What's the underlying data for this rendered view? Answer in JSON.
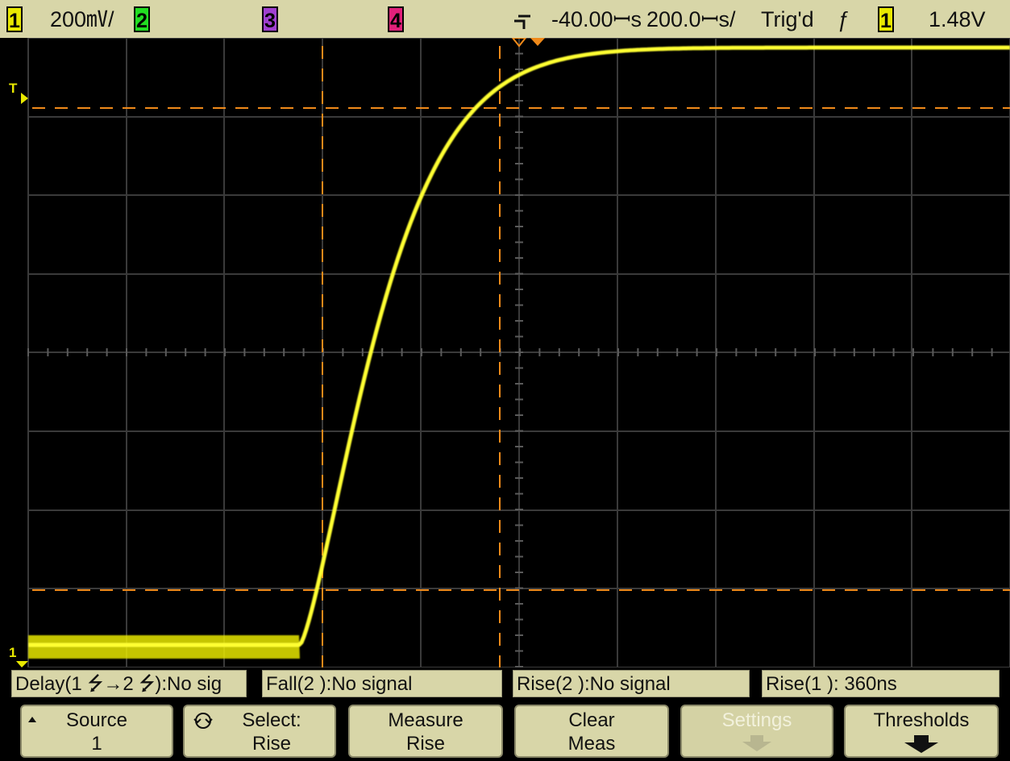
{
  "status_bar": {
    "ch1": {
      "num": "1",
      "scale": "200㎷/",
      "color": "#e8e800"
    },
    "ch2": {
      "num": "2",
      "color": "#22dd22"
    },
    "ch3": {
      "num": "3",
      "color": "#a040d0"
    },
    "ch4": {
      "num": "4",
      "color": "#e0207a"
    },
    "delay": "-40.00ꟷs",
    "timebase": "200.0ꟷs/",
    "trigger_status": "Trig'd",
    "trigger_slope_icon": "rising-edge-icon",
    "trigger_source": "1",
    "trigger_level": "1.48V"
  },
  "display": {
    "trace_color": "#e8e800",
    "cursor_color": "#f08a1a",
    "ground_marker": "1",
    "trigger_marker": "T"
  },
  "measurements": [
    "Delay(1 ⭍→2 ⭍):No sig",
    "Fall(2 ):No signal",
    "Rise(2 ):No signal",
    "Rise(1 ): 360ns"
  ],
  "softkeys": {
    "source": {
      "line1": "Source",
      "line2": "1"
    },
    "select": {
      "line1": "Select:",
      "line2": "Rise"
    },
    "measure": {
      "line1": "Measure",
      "line2": "Rise"
    },
    "clear": {
      "line1": "Clear",
      "line2": "Meas"
    },
    "settings": {
      "line1": "Settings",
      "enabled": false
    },
    "thresholds": {
      "line1": "Thresholds"
    }
  }
}
